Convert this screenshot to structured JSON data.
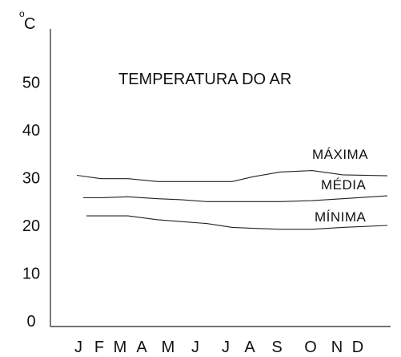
{
  "chart_data": {
    "type": "line",
    "title": "TEMPERATURA DO AR",
    "ylabel_degree": "o",
    "ylabel_unit": "C",
    "xlabel": "",
    "ylim": [
      0,
      60
    ],
    "yticks": [
      "0",
      "10",
      "20",
      "30",
      "40",
      "50"
    ],
    "ytick_values": [
      0,
      10,
      20,
      30,
      40,
      50
    ],
    "categories": [
      "J",
      "F",
      "M",
      "A",
      "M",
      "J",
      "J",
      "A",
      "S",
      "O",
      "N",
      "D"
    ],
    "series": [
      {
        "name": "MÁXIMA",
        "values": [
          30.5,
          29.8,
          29.8,
          29.2,
          29.2,
          29.2,
          29.2,
          30.2,
          31.2,
          31.5,
          30.6,
          30.4
        ]
      },
      {
        "name": "MÉDIA",
        "values": [
          25.8,
          25.8,
          26.0,
          25.6,
          25.4,
          25.0,
          25.0,
          25.0,
          25.0,
          25.2,
          25.6,
          26.2
        ]
      },
      {
        "name": "MÍNIMA",
        "values": [
          22.0,
          22.0,
          22.0,
          21.2,
          20.8,
          20.4,
          19.6,
          19.4,
          19.2,
          19.2,
          19.6,
          20.0
        ]
      }
    ],
    "grid": false,
    "legend": "inline labels"
  }
}
